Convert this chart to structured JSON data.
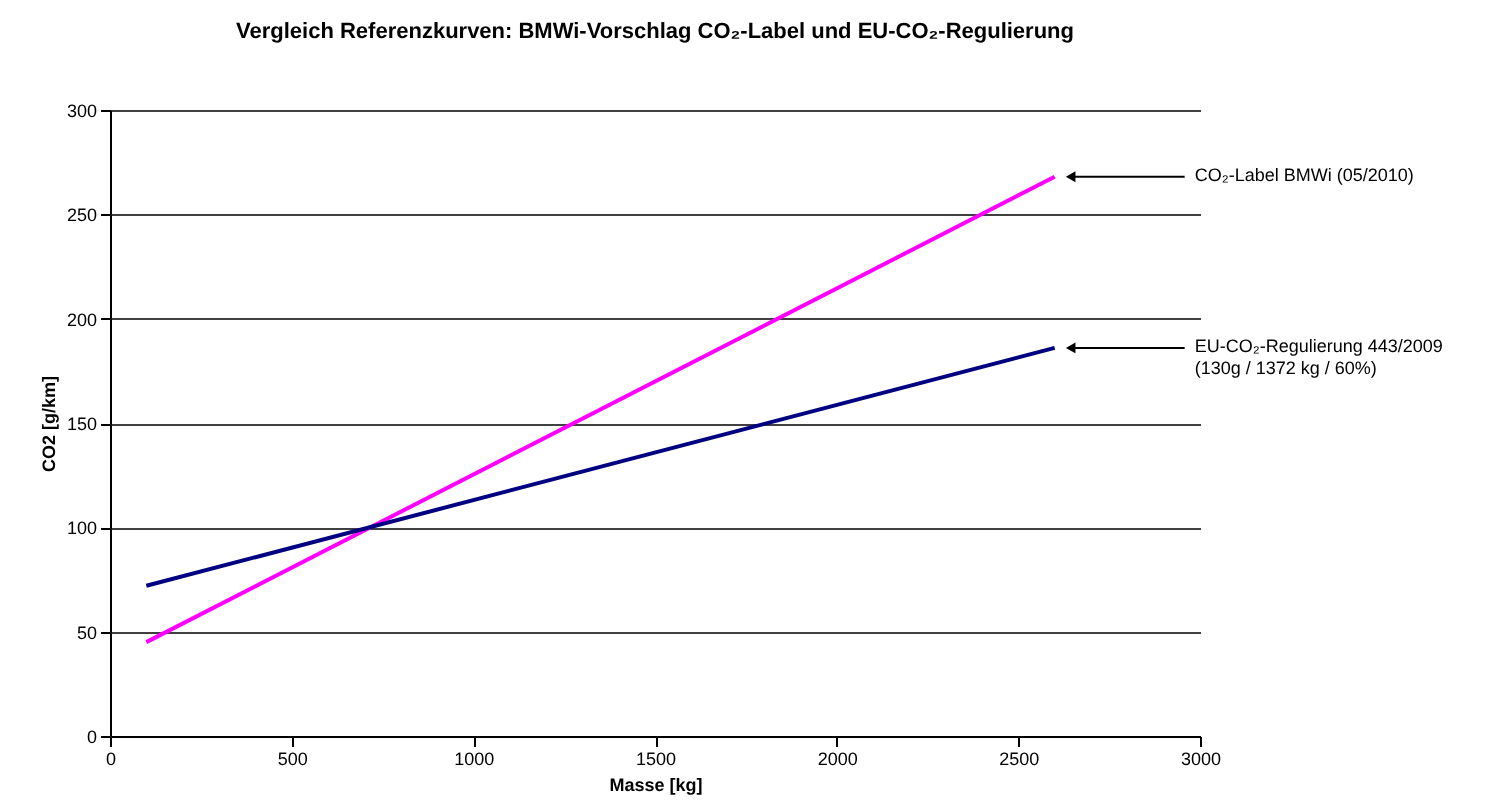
{
  "chart_data": {
    "type": "line",
    "title": "Vergleich Referenzkurven: BMWi-Vorschlag CO₂-Label und EU-CO₂-Regulierung",
    "xlabel": "Masse [kg]",
    "ylabel": "CO2 [g/km]",
    "x": [
      100,
      2600
    ],
    "series": [
      {
        "color": "#ff00ff",
        "values": [
          45,
          268
        ]
      },
      {
        "color": "#000080",
        "values": [
          72,
          186
        ]
      }
    ],
    "annotations": [
      {
        "text": "CO₂-Label BMWi (05/2010)",
        "x": 2600,
        "y": 268
      },
      {
        "text": "EU-CO₂-Regulierung 443/2009\n(130g / 1372 kg / 60%)",
        "x": 2600,
        "y": 186
      }
    ],
    "xlim": [
      0,
      3000
    ],
    "xticks": [
      0,
      500,
      1000,
      1500,
      2000,
      2500,
      3000
    ],
    "ylim": [
      0,
      300
    ],
    "yticks": [
      0,
      50,
      100,
      150,
      200,
      250,
      300
    ],
    "grid": "y",
    "legend": false,
    "marker": "none",
    "line_style": "solid"
  }
}
